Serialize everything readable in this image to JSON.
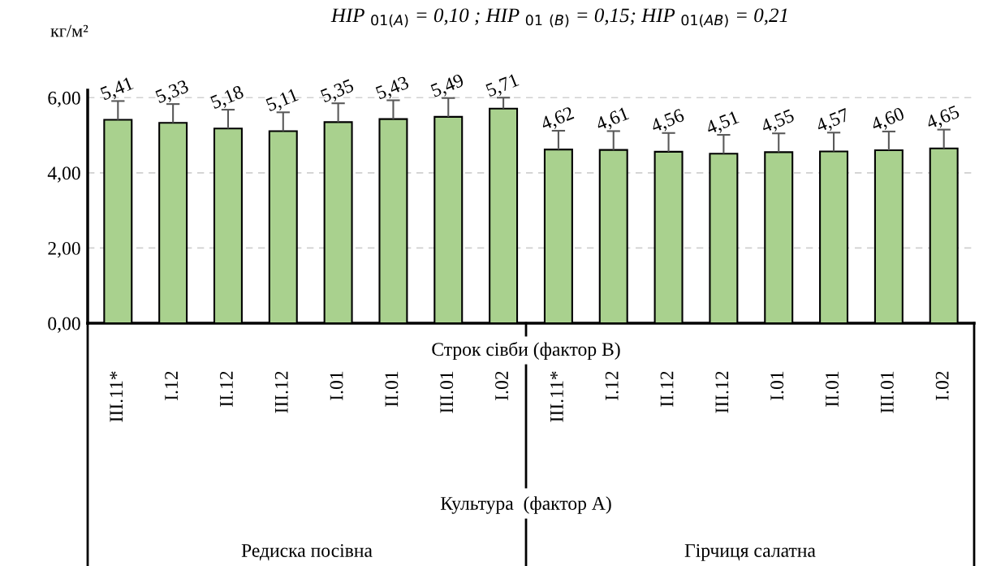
{
  "chart_data": {
    "type": "bar",
    "title": "НІР $_{01(A)}$ = 0,10 ; НІР $_{01}$ $_{(B)}$ = 0,15; НІР $_{01(AB)}$ = 0,21",
    "ylabel": "кг/м²",
    "categories": [
      "III.11*",
      "I.12",
      "II.12",
      "III.12",
      "I.01",
      "II.01",
      "III.01",
      "I.02",
      "III.11*",
      "I.12",
      "II.12",
      "III.12",
      "I.01",
      "II.01",
      "III.01",
      "I.02"
    ],
    "values": [
      5.41,
      5.33,
      5.18,
      5.11,
      5.35,
      5.43,
      5.49,
      5.71,
      4.62,
      4.61,
      4.56,
      4.51,
      4.55,
      4.57,
      4.6,
      4.65
    ],
    "errors": [
      [
        5.41,
        5.91
      ],
      [
        5.33,
        5.83
      ],
      [
        5.18,
        5.68
      ],
      [
        5.11,
        5.61
      ],
      [
        5.35,
        5.85
      ],
      [
        5.43,
        5.93
      ],
      [
        5.49,
        5.99
      ],
      [
        5.71,
        6.0
      ],
      [
        4.62,
        5.12
      ],
      [
        4.61,
        5.11
      ],
      [
        4.56,
        5.06
      ],
      [
        4.51,
        5.01
      ],
      [
        4.55,
        5.05
      ],
      [
        4.57,
        5.07
      ],
      [
        4.6,
        5.1
      ],
      [
        4.65,
        5.15
      ]
    ],
    "value_labels": [
      "5,41",
      "5,33",
      "5,18",
      "5,11",
      "5,35",
      "5,43",
      "5,49",
      "5,71",
      "4,62",
      "4,61",
      "4,56",
      "4,51",
      "4,55",
      "4,57",
      "4,60",
      "4,65"
    ],
    "color": "#a9d18e",
    "ylim": [
      0,
      6.2
    ],
    "yticks": [
      {
        "value": 0,
        "label": "0,00"
      },
      {
        "value": 2,
        "label": "2,00"
      },
      {
        "value": 4,
        "label": "4,00"
      },
      {
        "value": 6,
        "label": "6,00"
      }
    ],
    "grid": "y",
    "annotations": [
      "Строк сівби (фактор В)",
      "Культура  (фактор А)",
      "Редиска посівна",
      "Гірчиця салатна"
    ]
  }
}
